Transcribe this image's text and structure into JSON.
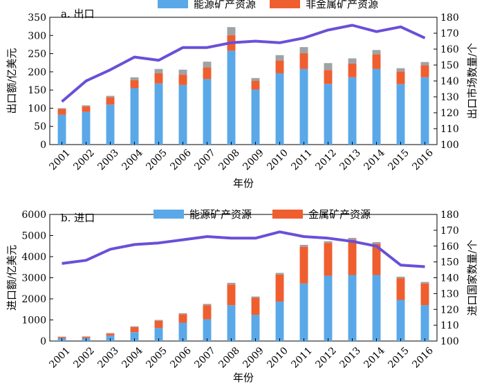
{
  "chart_data": [
    {
      "type": "bar",
      "panel_label": "a. 出口",
      "categories": [
        "2001",
        "2002",
        "2003",
        "2004",
        "2005",
        "2006",
        "2007",
        "2008",
        "2009",
        "2010",
        "2011",
        "2012",
        "2013",
        "2014",
        "2015",
        "2016"
      ],
      "xlabel": "年份",
      "ylabel": "出口额/亿美元",
      "y2label": "出口市场数量/个",
      "ylim": [
        0,
        350
      ],
      "y2lim": [
        100,
        180
      ],
      "yticks": [
        0,
        50,
        100,
        150,
        200,
        250,
        300,
        350
      ],
      "y2ticks": [
        100,
        110,
        120,
        130,
        140,
        150,
        160,
        170,
        180
      ],
      "stacked": true,
      "legend_position": "top",
      "series": [
        {
          "name": "能源矿产资源",
          "color": "#5aa8e8",
          "values": [
            82,
            90,
            110,
            155,
            168,
            164,
            180,
            258,
            151,
            196,
            208,
            167,
            185,
            208,
            166,
            185
          ]
        },
        {
          "name": "非金属矿产资源",
          "color": "#ef5e2f",
          "values": [
            16,
            15,
            20,
            22,
            28,
            28,
            32,
            43,
            24,
            35,
            43,
            38,
            38,
            40,
            35,
            33
          ]
        },
        {
          "color": "#9ea3a5",
          "values": [
            2,
            3,
            4,
            8,
            12,
            14,
            16,
            22,
            8,
            15,
            17,
            19,
            14,
            12,
            9,
            9
          ]
        },
        {
          "type": "line",
          "axis": "right",
          "color": "#6a4fd8",
          "values": [
            127,
            140,
            147,
            155,
            153,
            161,
            161,
            164,
            165,
            164,
            167,
            172,
            175,
            171,
            174,
            167
          ]
        }
      ]
    },
    {
      "type": "bar",
      "panel_label": "b. 进口",
      "categories": [
        "2001",
        "2002",
        "2003",
        "2004",
        "2005",
        "2006",
        "2007",
        "2008",
        "2009",
        "2010",
        "2011",
        "2012",
        "2013",
        "2014",
        "2015",
        "2016"
      ],
      "xlabel": "年份",
      "ylabel": "进口额/亿美元",
      "y2label": "进口国家数量/个",
      "ylim": [
        0,
        6000
      ],
      "y2lim": [
        100,
        180
      ],
      "yticks": [
        0,
        1000,
        2000,
        3000,
        4000,
        5000,
        6000
      ],
      "y2ticks": [
        100,
        110,
        120,
        130,
        140,
        150,
        160,
        170,
        180
      ],
      "stacked": true,
      "legend_position": "top",
      "series": [
        {
          "name": "能源矿产资源",
          "color": "#5aa8e8",
          "values": [
            130,
            140,
            250,
            420,
            620,
            870,
            1030,
            1700,
            1240,
            1870,
            2730,
            3100,
            3130,
            3130,
            1950,
            1700
          ]
        },
        {
          "name": "金属矿产资源",
          "color": "#ef5e2f",
          "values": [
            60,
            60,
            100,
            240,
            330,
            400,
            670,
            980,
            810,
            1280,
            1740,
            1550,
            1680,
            1480,
            1030,
            1030
          ]
        },
        {
          "color": "#9ea3a5",
          "values": [
            20,
            20,
            30,
            40,
            50,
            50,
            60,
            80,
            60,
            80,
            90,
            80,
            80,
            80,
            70,
            70
          ]
        },
        {
          "type": "line",
          "axis": "right",
          "color": "#6a4fd8",
          "values": [
            149,
            151,
            158,
            161,
            162,
            164,
            166,
            165,
            165,
            169,
            166,
            165,
            163,
            160,
            148,
            147
          ]
        }
      ]
    }
  ]
}
